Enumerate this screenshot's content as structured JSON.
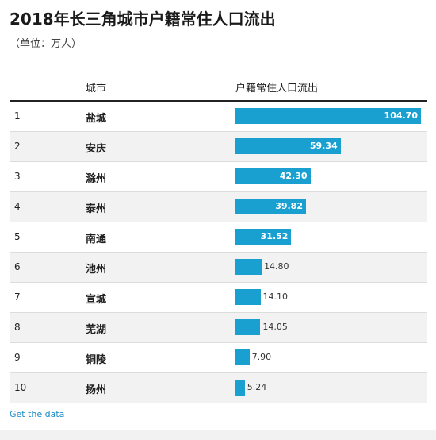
{
  "title": "2018年长三角城市户籍常住人口流出",
  "subtitle": "（单位：万人）",
  "header": {
    "city": "城市",
    "metric": "户籍常住人口流出"
  },
  "link_label": "Get the data",
  "colors": {
    "bar": "#1aa0d0"
  },
  "chart_data": {
    "type": "bar",
    "orientation": "horizontal",
    "title": "2018年长三角城市户籍常住人口流出",
    "unit": "万人",
    "ranks": [
      "1",
      "2",
      "3",
      "4",
      "5",
      "6",
      "7",
      "8",
      "9",
      "10"
    ],
    "categories": [
      "盐城",
      "安庆",
      "滁州",
      "泰州",
      "南通",
      "池州",
      "宣城",
      "芜湖",
      "铜陵",
      "扬州"
    ],
    "values": [
      104.7,
      59.34,
      42.3,
      39.82,
      31.52,
      14.8,
      14.1,
      14.05,
      7.9,
      5.24
    ],
    "labels": [
      "104.70",
      "59.34",
      "42.30",
      "39.82",
      "31.52",
      "14.80",
      "14.10",
      "14.05",
      "7.90",
      "5.24"
    ],
    "xlim": [
      0,
      104.7
    ]
  }
}
